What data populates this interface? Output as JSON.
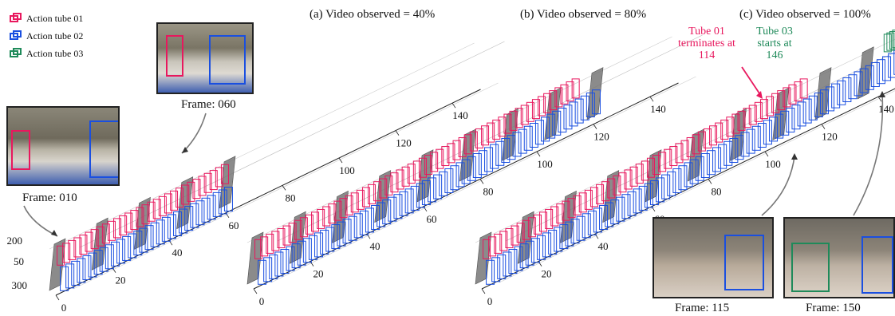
{
  "legend": [
    {
      "label": "Action tube 01",
      "color": "#e8185e"
    },
    {
      "label": "Action tube 02",
      "color": "#1a4fe0"
    },
    {
      "label": "Action tube 03",
      "color": "#1f8a5a"
    }
  ],
  "colors": {
    "tube01": "#e8185e",
    "tube02": "#1a4fe0",
    "tube03": "#1f8a5a"
  },
  "panels": [
    {
      "title": "(a) Video observed = 40%"
    },
    {
      "title": "(b) Video observed = 80%"
    },
    {
      "title": "(c) Video observed = 100%"
    }
  ],
  "axis_ticks": {
    "frame": [
      "0",
      "20",
      "40",
      "60",
      "80",
      "100",
      "120",
      "140"
    ],
    "y": [
      "200",
      "50",
      "300"
    ]
  },
  "thumbnails": [
    {
      "caption": "Frame: 010"
    },
    {
      "caption": "Frame: 060"
    },
    {
      "caption": "Frame: 115"
    },
    {
      "caption": "Frame: 150"
    }
  ],
  "annotations": {
    "tube01_end": "Tube 01 terminates at 114",
    "tube03_start": "Tube 03 starts at 146"
  }
}
